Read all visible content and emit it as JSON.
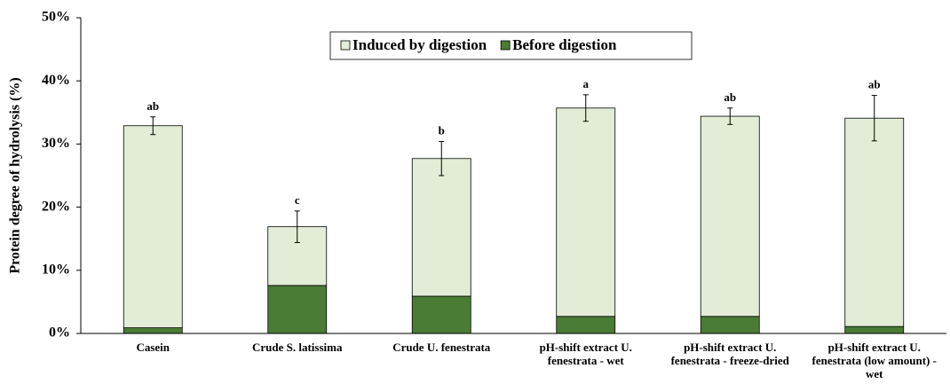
{
  "chart_data": {
    "type": "bar",
    "stacked": true,
    "y_label": "Protein degree of hydrolysis (%)",
    "categories": [
      "Casein",
      "Crude S. latissima",
      "Crude U. fenestrata",
      "pH-shift extract U. fenestrata - wet",
      "pH-shift extract U. fenestrata - freeze-dried",
      "pH-shift extract U. fenestrata (low amount) - wet"
    ],
    "series": [
      {
        "name": "Induced by digestion",
        "color": "#e2ecd6",
        "values": [
          32.0,
          9.3,
          21.8,
          33.0,
          31.7,
          33.0
        ],
        "errors": [
          1.4,
          2.5,
          2.7,
          2.1,
          1.3,
          3.6
        ]
      },
      {
        "name": "Before digestion",
        "color": "#4a7c35",
        "values": [
          0.9,
          7.6,
          5.9,
          2.7,
          2.7,
          1.1
        ]
      }
    ],
    "annotations": [
      "ab",
      "c",
      "b",
      "a",
      "ab",
      "ab"
    ],
    "ylim": [
      0,
      50
    ],
    "yticks": [
      {
        "value": 0,
        "label": "0%"
      },
      {
        "value": 10,
        "label": "10%"
      },
      {
        "value": 20,
        "label": "20%"
      },
      {
        "value": 30,
        "label": "30%"
      },
      {
        "value": 40,
        "label": "40%"
      },
      {
        "value": 50,
        "label": "50%"
      }
    ],
    "legend": "top"
  }
}
